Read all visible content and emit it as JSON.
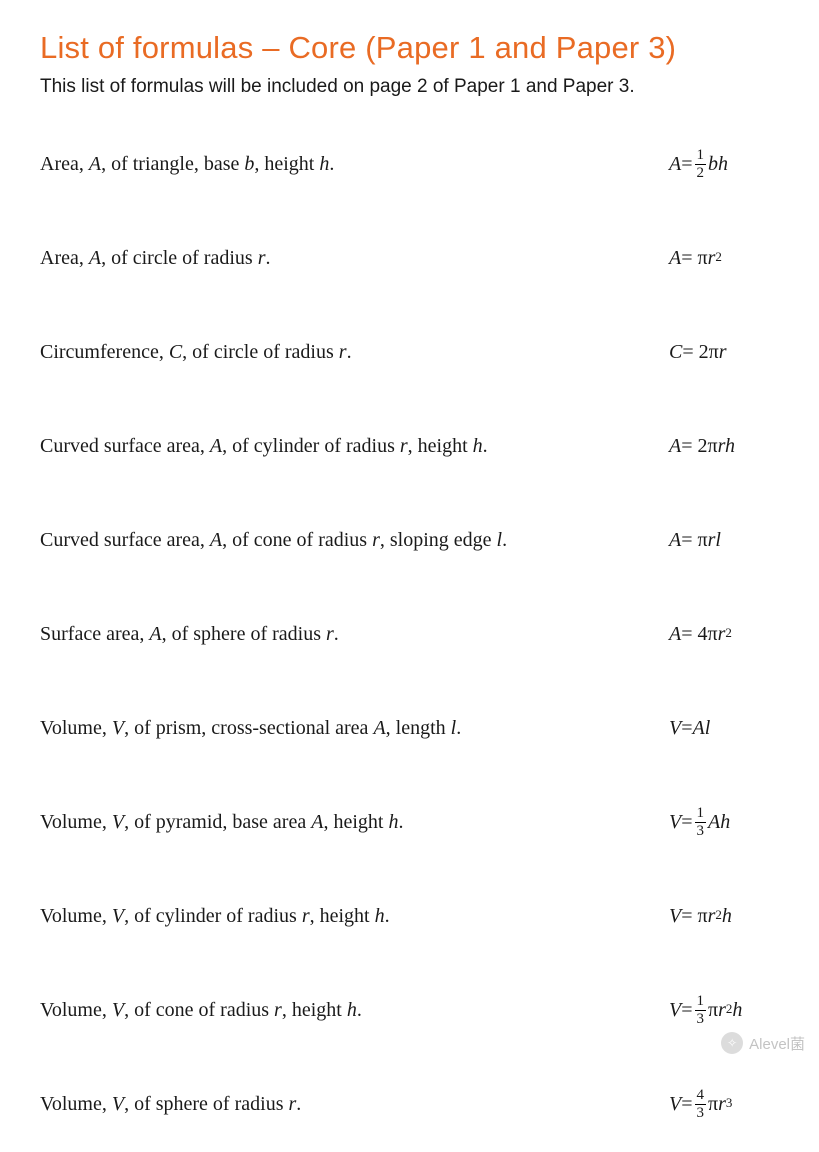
{
  "colors": {
    "title": "#e96b24",
    "text": "#1a1a1a",
    "background": "#ffffff"
  },
  "title": "List of formulas – Core (Paper 1 and Paper 3)",
  "subtitle": "This list of formulas will be included on page 2 of Paper 1 and Paper 3.",
  "rows": [
    {
      "desc_html": "Area, <span class='it'>A</span>, of triangle, base <span class='it'>b</span>, height <span class='it'>h</span>.",
      "formula_html": "<span class='it'>A</span> <span class='rm'>=</span> <span class='frac'><span class='num'>1</span><span class='den'>2</span></span><span class='it'>bh</span>"
    },
    {
      "desc_html": "Area, <span class='it'>A</span>, of circle of radius <span class='it'>r</span>.",
      "formula_html": "<span class='it'>A</span> <span class='rm'>= π</span><span class='it'>r</span><span class='sup'>2</span>"
    },
    {
      "desc_html": "Circumference, <span class='it'>C</span>, of circle of radius <span class='it'>r</span>.",
      "formula_html": "<span class='it'>C</span> <span class='rm'>= 2π</span><span class='it'>r</span>"
    },
    {
      "desc_html": "Curved surface area, <span class='it'>A</span>, of cylinder of radius <span class='it'>r</span>, height <span class='it'>h</span>.",
      "formula_html": "<span class='it'>A</span> <span class='rm'>= 2π</span><span class='it'>rh</span>"
    },
    {
      "desc_html": "Curved surface area, <span class='it'>A</span>, of cone of radius <span class='it'>r</span>, sloping edge <span class='it'>l</span>.",
      "formula_html": "<span class='it'>A</span> <span class='rm'>= π</span><span class='it'>rl</span>"
    },
    {
      "desc_html": "Surface area, <span class='it'>A</span>, of sphere of radius <span class='it'>r</span>.",
      "formula_html": "<span class='it'>A</span> <span class='rm'>= 4π</span><span class='it'>r</span><span class='sup'>2</span>"
    },
    {
      "desc_html": "Volume, <span class='it'>V</span>, of prism, cross-sectional area <span class='it'>A</span>, length <span class='it'>l</span>.",
      "formula_html": "<span class='it'>V</span> <span class='rm'>=</span> <span class='it'>Al</span>"
    },
    {
      "desc_html": "Volume, <span class='it'>V</span>, of pyramid, base area <span class='it'>A</span>, height <span class='it'>h</span>.",
      "formula_html": "<span class='it'>V</span> <span class='rm'>=</span> <span class='frac'><span class='num'>1</span><span class='den'>3</span></span><span class='it'>Ah</span>"
    },
    {
      "desc_html": "Volume, <span class='it'>V</span>, of cylinder of radius <span class='it'>r</span>, height <span class='it'>h</span>.",
      "formula_html": "<span class='it'>V</span> <span class='rm'>= π</span><span class='it'>r</span><span class='sup'>2</span><span class='it'>h</span>"
    },
    {
      "desc_html": "Volume, <span class='it'>V</span>, of cone of radius <span class='it'>r</span>, height <span class='it'>h</span>.",
      "formula_html": "<span class='it'>V</span> <span class='rm'>=</span> <span class='frac'><span class='num'>1</span><span class='den'>3</span></span><span class='rm'>π</span><span class='it'>r</span><span class='sup'>2</span><span class='it'>h</span>"
    },
    {
      "desc_html": "Volume, <span class='it'>V</span>, of sphere of radius <span class='it'>r</span>.",
      "formula_html": "<span class='it'>V</span> <span class='rm'>=</span> <span class='frac'><span class='num'>4</span><span class='den'>3</span></span><span class='rm'>π</span><span class='it'>r</span><span class='sup'>3</span>"
    }
  ],
  "watermark": {
    "text": "Alevel菌",
    "icon_glyph": "✧"
  }
}
